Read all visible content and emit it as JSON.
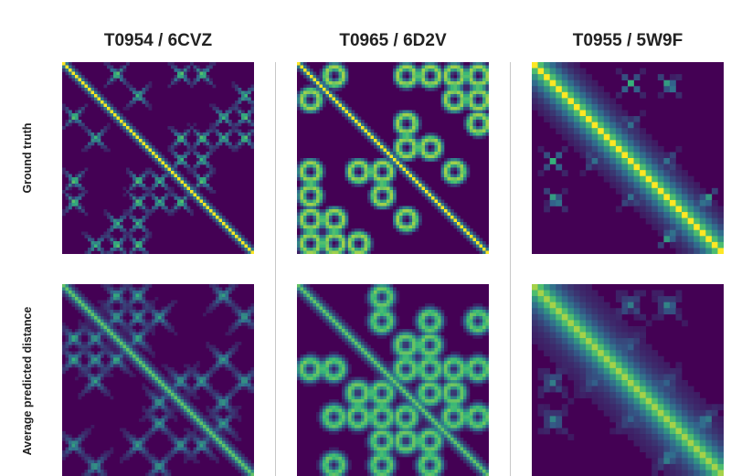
{
  "columns": [
    {
      "title": "T0954 / 6CVZ"
    },
    {
      "title": "T0965 / 6D2V"
    },
    {
      "title": "T0955 / 5W9F"
    }
  ],
  "rows": [
    {
      "label": "Ground truth"
    },
    {
      "label": "Average predicted distance"
    }
  ],
  "colormap": [
    "#440154",
    "#31688e",
    "#35b779",
    "#fde725"
  ],
  "panels": [
    {
      "column": "T0954 / 6CVZ",
      "row": "Ground truth",
      "style": "x-crosses-fine"
    },
    {
      "column": "T0965 / 6D2V",
      "row": "Ground truth",
      "style": "loops-fine"
    },
    {
      "column": "T0955 / 5W9F",
      "row": "Ground truth",
      "style": "blocky-coarse"
    },
    {
      "column": "T0954 / 6CVZ",
      "row": "Average predicted distance",
      "style": "x-crosses-blurred"
    },
    {
      "column": "T0965 / 6D2V",
      "row": "Average predicted distance",
      "style": "loops-blurred"
    },
    {
      "column": "T0955 / 5W9F",
      "row": "Average predicted distance",
      "style": "blocky-smooth"
    }
  ]
}
